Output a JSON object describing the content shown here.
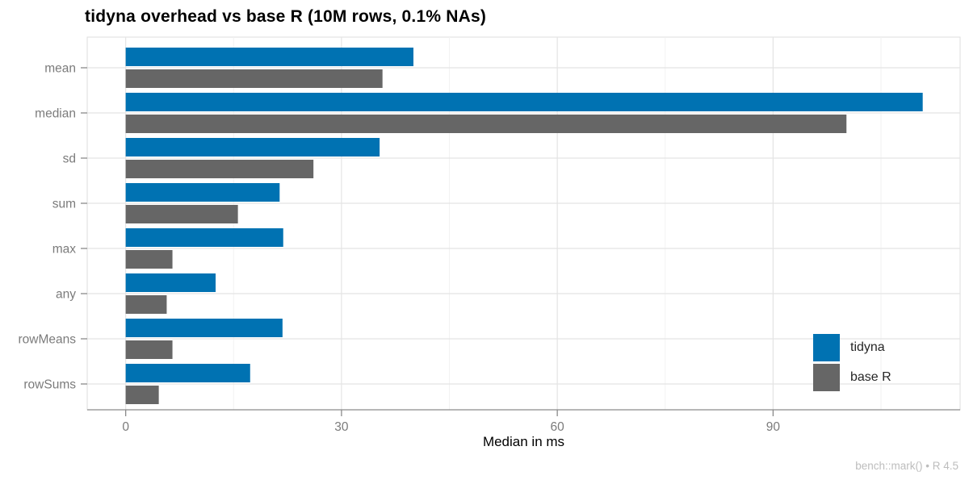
{
  "chart_data": {
    "type": "bar",
    "orientation": "horizontal",
    "title": "tidyna overhead vs base R (10M rows, 0.1% NAs)",
    "xlabel": "Median in ms",
    "ylabel": "",
    "categories": [
      "mean",
      "median",
      "sd",
      "sum",
      "max",
      "any",
      "rowMeans",
      "rowSums"
    ],
    "series": [
      {
        "name": "tidyna",
        "color": "#0072B2",
        "values": [
          40.0,
          110.8,
          35.3,
          21.4,
          21.9,
          12.5,
          21.8,
          17.3
        ]
      },
      {
        "name": "base R",
        "color": "#666666",
        "values": [
          35.7,
          100.2,
          26.1,
          15.6,
          6.5,
          5.7,
          6.5,
          4.6
        ]
      }
    ],
    "x_major_ticks": [
      0,
      30,
      60,
      90
    ],
    "x_minor_ticks": [
      15,
      45,
      75,
      105
    ],
    "xlim": [
      -5.35,
      116.0
    ],
    "grid": "on",
    "legend_position": "inside-right",
    "caption": "bench::mark() • R 4.5"
  },
  "style_colors": {
    "grid_major": "#e4e4e4",
    "grid_minor": "#f2f2f2",
    "panel_border": "#dedede",
    "axis_line": "#8a8a8a",
    "tick_mark": "#8a8a8a",
    "tick_label": "#7b7b7b"
  }
}
